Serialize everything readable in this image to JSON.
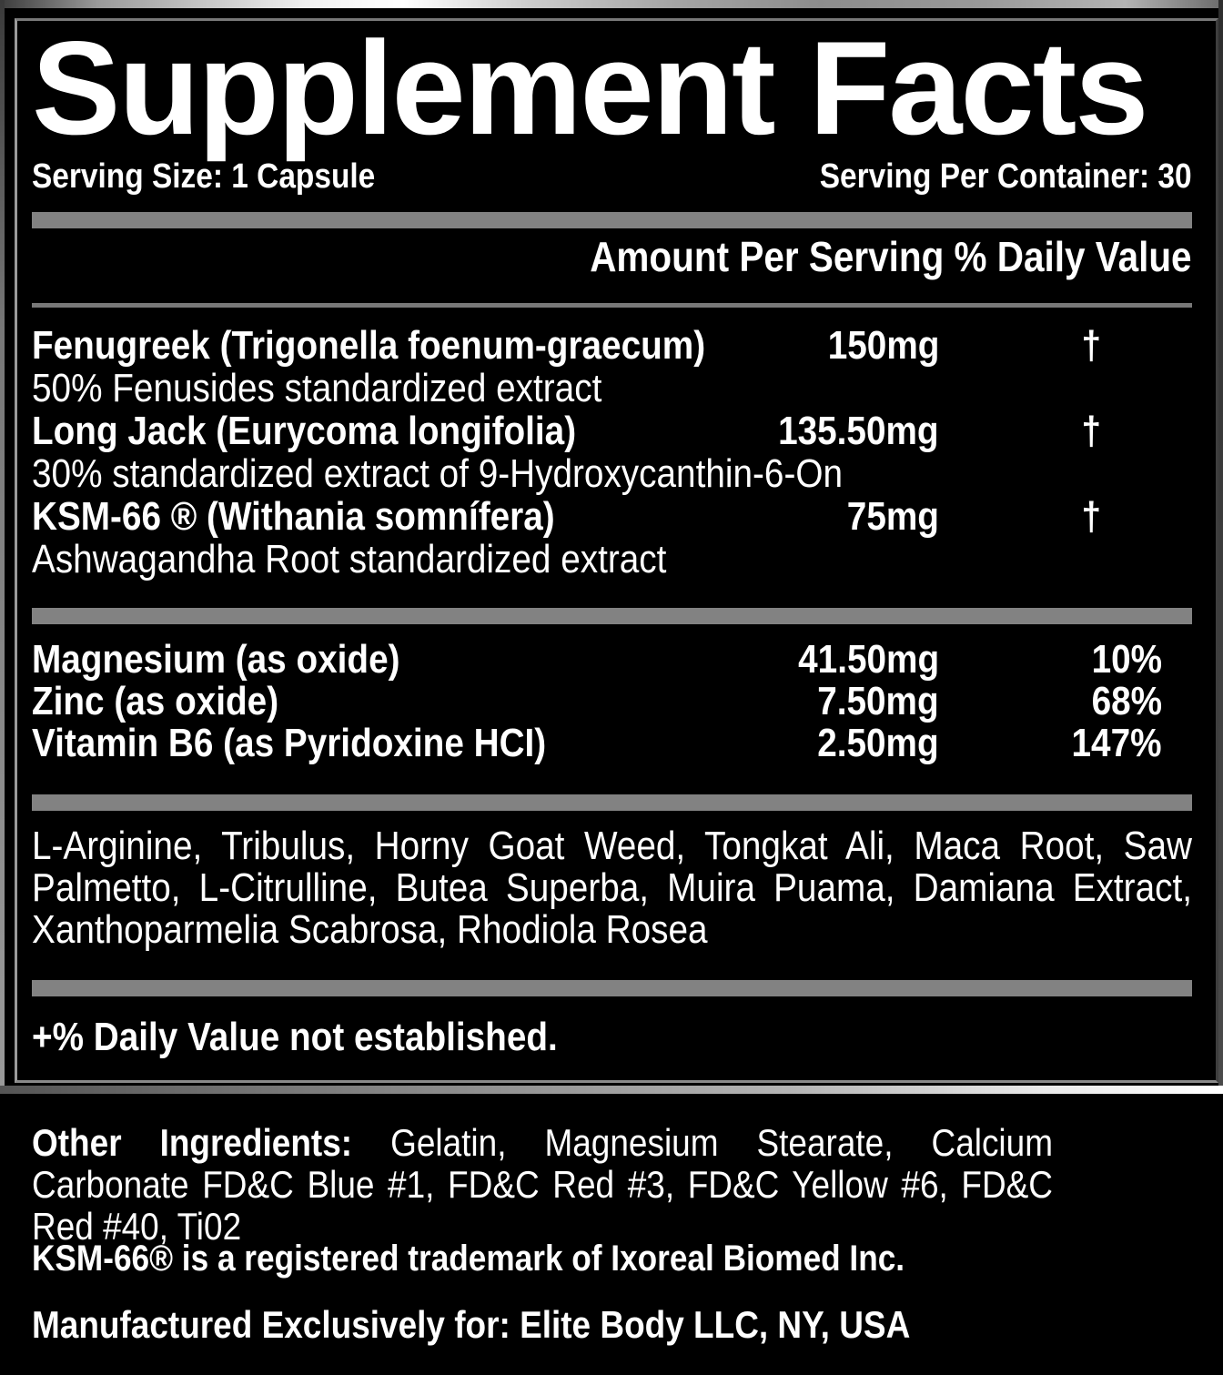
{
  "title": "Supplement Facts",
  "serving": {
    "size_label": "Serving Size: 1 Capsule",
    "per_container_label": "Serving Per Container: 30"
  },
  "columns_header": "Amount Per Serving % Daily Value",
  "ingredients": [
    {
      "name": "Fenugreek (Trigonella foenum-graecum)",
      "desc": "50% Fenusides standardized extract",
      "amount": "150mg",
      "dv": "†"
    },
    {
      "name": "Long Jack (Eurycoma longifolia)",
      "desc": "30% standardized extract of 9-Hydroxycanthin-6-On",
      "amount": "135.50mg",
      "dv": "†"
    },
    {
      "name": "KSM-66 ® (Withania somnífera)",
      "desc": "Ashwagandha Root standardized extract",
      "amount": "75mg",
      "dv": "†"
    }
  ],
  "minerals": [
    {
      "name": "Magnesium (as oxide)",
      "amount": "41.50mg",
      "dv": "10%"
    },
    {
      "name": "Zinc (as oxide)",
      "amount": "7.50mg",
      "dv": "68%"
    },
    {
      "name": "Vitamin B6 (as Pyridoxine HCI)",
      "amount": "2.50mg",
      "dv": "147%"
    }
  ],
  "blend": "L-Arginine, Tribulus, Horny Goat Weed, Tongkat Ali, Maca Root, Saw Palmetto, L-Citrulline, Butea Superba, Muira Puama, Damiana Extract, Xanthoparmelia Scabrosa, Rhodiola Rosea",
  "footnote": "+% Daily Value not established.",
  "other_ingredients": {
    "label": "Other Ingredients:",
    "text": "Gelatin, Magnesium Stearate, Calcium Carbonate FD&C Blue #1, FD&C Red #3, FD&C Yellow #6, FD&C Red #40, Ti02"
  },
  "trademark": "KSM-66® is a registered trademark of Ixoreal Biomed Inc.",
  "manufactured": "Manufactured Exclusively for: Elite Body LLC, NY, USA",
  "colors": {
    "background": "#000000",
    "text": "#ffffff",
    "separator_bar": "#828282",
    "metal_frame_light": "#ffffff",
    "metal_frame_dark": "#3c3c3c"
  }
}
